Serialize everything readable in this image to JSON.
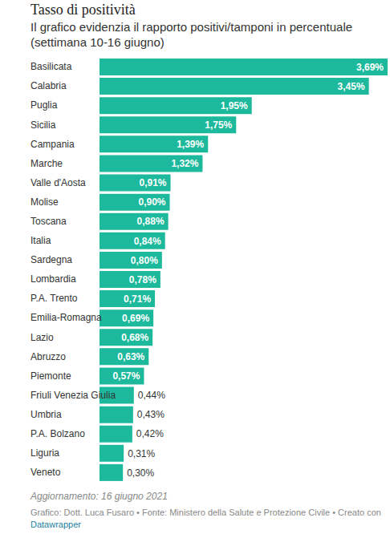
{
  "chart_data": {
    "type": "bar",
    "orientation": "horizontal",
    "title": "Tasso di positività",
    "subtitle": "Il grafico evidenzia il rapporto positivi/tamponi in percentuale (settimana 10-16 giugno)",
    "categories": [
      "Basilicata",
      "Calabria",
      "Puglia",
      "Sicilia",
      "Campania",
      "Marche",
      "Valle d'Aosta",
      "Molise",
      "Toscana",
      "Italia",
      "Sardegna",
      "Lombardia",
      "P.A. Trento",
      "Emilia-Romagna",
      "Lazio",
      "Abruzzo",
      "Piemonte",
      "Friuli Venezia Giulia",
      "Umbria",
      "P.A. Bolzano",
      "Liguria",
      "Veneto"
    ],
    "values": [
      3.69,
      3.45,
      1.95,
      1.75,
      1.39,
      1.32,
      0.91,
      0.9,
      0.88,
      0.84,
      0.8,
      0.78,
      0.71,
      0.69,
      0.68,
      0.63,
      0.57,
      0.44,
      0.43,
      0.42,
      0.31,
      0.3
    ],
    "value_labels": [
      "3,69%",
      "3,45%",
      "1,95%",
      "1,75%",
      "1,39%",
      "1,32%",
      "0,91%",
      "0,90%",
      "0,88%",
      "0,84%",
      "0,80%",
      "0,78%",
      "0,71%",
      "0,69%",
      "0,68%",
      "0,63%",
      "0,57%",
      "0,44%",
      "0,43%",
      "0,42%",
      "0,31%",
      "0,30%"
    ],
    "color": "#1cb99c",
    "xlim": [
      0,
      3.69
    ],
    "tick_labels": false,
    "data_labels": true,
    "annotations": [
      "Aggiornamento: 16 giugno 2021",
      "Grafico: Dott. Luca Fusaro • Fonte: Ministero della Salute e Protezione Civile • Creato con",
      "Datawrapper"
    ]
  }
}
